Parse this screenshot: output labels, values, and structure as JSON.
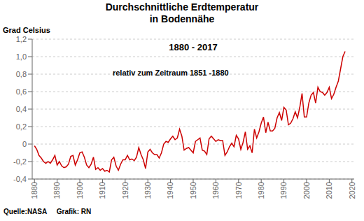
{
  "chart_data": {
    "type": "line",
    "title": "Durchschnittliche Erdtemperatur\nin Bodennähe",
    "subtitle": "1880 - 2017",
    "y_label": "Grad Celsius",
    "annotations": [
      "relativ zum Zeitraum 1851 -1880",
      "Quelle:NASA     Grafik: RN"
    ],
    "color": "#cc0000",
    "grid": true,
    "x": [
      1880,
      1881,
      1882,
      1883,
      1884,
      1885,
      1886,
      1887,
      1888,
      1889,
      1890,
      1891,
      1892,
      1893,
      1894,
      1895,
      1896,
      1897,
      1898,
      1899,
      1900,
      1901,
      1902,
      1903,
      1904,
      1905,
      1906,
      1907,
      1908,
      1909,
      1910,
      1911,
      1912,
      1913,
      1914,
      1915,
      1916,
      1917,
      1918,
      1919,
      1920,
      1921,
      1922,
      1923,
      1924,
      1925,
      1926,
      1927,
      1928,
      1929,
      1930,
      1931,
      1932,
      1933,
      1934,
      1935,
      1936,
      1937,
      1938,
      1939,
      1940,
      1941,
      1942,
      1943,
      1944,
      1945,
      1946,
      1947,
      1948,
      1949,
      1950,
      1951,
      1952,
      1953,
      1954,
      1955,
      1956,
      1957,
      1958,
      1959,
      1960,
      1961,
      1962,
      1963,
      1964,
      1965,
      1966,
      1967,
      1968,
      1969,
      1970,
      1971,
      1972,
      1973,
      1974,
      1975,
      1976,
      1977,
      1978,
      1979,
      1980,
      1981,
      1982,
      1983,
      1984,
      1985,
      1986,
      1987,
      1988,
      1989,
      1990,
      1991,
      1992,
      1993,
      1994,
      1995,
      1996,
      1997,
      1998,
      1999,
      2000,
      2001,
      2002,
      2003,
      2004,
      2005,
      2006,
      2007,
      2008,
      2009,
      2010,
      2011,
      2012,
      2013,
      2014,
      2015,
      2016,
      2017
    ],
    "values": [
      -0.02,
      -0.06,
      -0.13,
      -0.16,
      -0.2,
      -0.22,
      -0.2,
      -0.22,
      -0.18,
      -0.13,
      -0.24,
      -0.2,
      -0.25,
      -0.27,
      -0.26,
      -0.23,
      -0.14,
      -0.13,
      -0.24,
      -0.18,
      -0.1,
      -0.09,
      -0.15,
      -0.24,
      -0.27,
      -0.23,
      -0.15,
      -0.29,
      -0.27,
      -0.3,
      -0.28,
      -0.31,
      -0.3,
      -0.32,
      -0.18,
      -0.15,
      -0.25,
      -0.3,
      -0.23,
      -0.18,
      -0.18,
      -0.13,
      -0.18,
      -0.17,
      -0.19,
      -0.15,
      -0.04,
      -0.12,
      -0.18,
      -0.28,
      -0.09,
      -0.06,
      -0.1,
      -0.12,
      -0.12,
      -0.16,
      -0.1,
      -0.0,
      0.03,
      0.02,
      0.06,
      0.09,
      0.05,
      0.07,
      0.17,
      0.09,
      -0.07,
      -0.05,
      -0.04,
      -0.07,
      -0.1,
      0.03,
      0.05,
      0.07,
      -0.07,
      -0.08,
      -0.12,
      0.06,
      0.09,
      0.06,
      0.03,
      0.05,
      0.04,
      0.04,
      -0.13,
      -0.09,
      -0.03,
      0.01,
      -0.03,
      0.1,
      0.06,
      -0.06,
      0.02,
      0.14,
      -0.06,
      -0.02,
      -0.1,
      0.17,
      0.07,
      0.14,
      0.24,
      0.31,
      0.13,
      0.25,
      0.15,
      0.15,
      0.18,
      0.3,
      0.36,
      0.27,
      0.42,
      0.39,
      0.22,
      0.24,
      0.29,
      0.37,
      0.3,
      0.42,
      0.58,
      0.31,
      0.31,
      0.47,
      0.56,
      0.59,
      0.47,
      0.65,
      0.6,
      0.59,
      0.56,
      0.59,
      0.65,
      0.52,
      0.57,
      0.65,
      0.72,
      0.86,
      1.0,
      1.06
    ],
    "xlim": [
      1879,
      2021
    ],
    "xticks": [
      1880,
      1890,
      1900,
      1910,
      1920,
      1930,
      1940,
      1950,
      1960,
      1970,
      1980,
      1990,
      2000,
      2010,
      2020
    ],
    "ylim": [
      -0.4,
      1.2
    ],
    "yticks": [
      {
        "value": -0.4,
        "label": "-0,4"
      },
      {
        "value": -0.2,
        "label": "-0,2"
      },
      0,
      {
        "value": 0.2,
        "label": "0,2"
      },
      {
        "value": 0.4,
        "label": "0,4"
      },
      {
        "value": 0.6,
        "label": "0,6"
      },
      {
        "value": 0.8,
        "label": "0,8"
      },
      {
        "value": 1.0,
        "label": "1,0"
      },
      {
        "value": 1.2,
        "label": "1,2"
      }
    ]
  }
}
